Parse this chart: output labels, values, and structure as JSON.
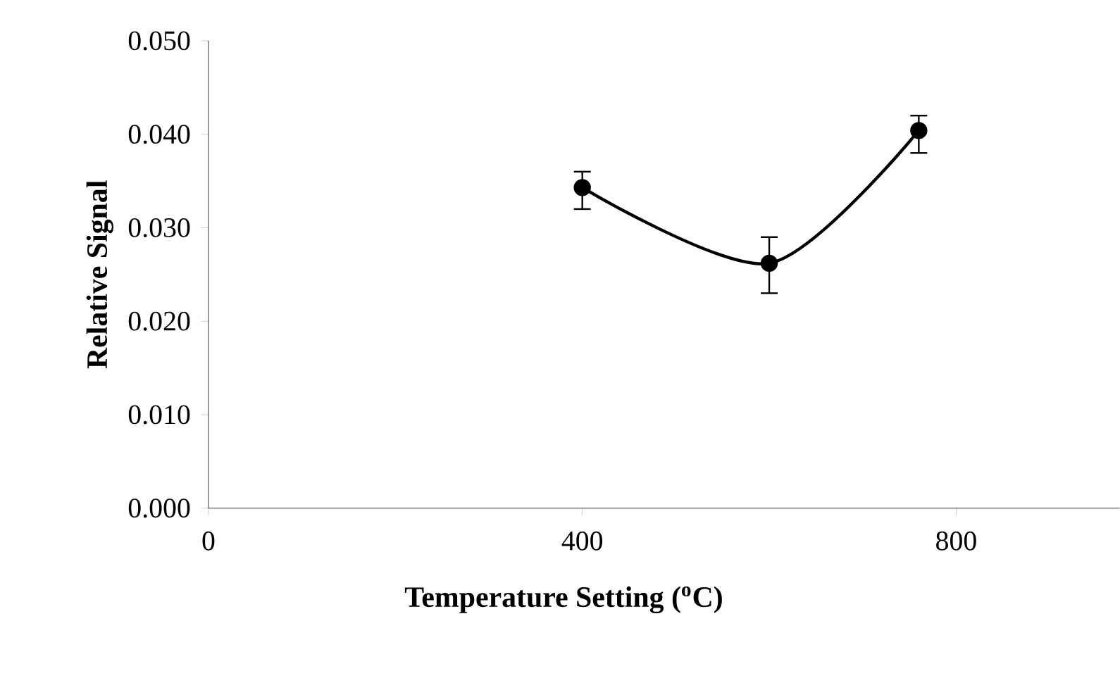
{
  "chart_data": {
    "type": "line",
    "xlabel": "Temperature Setting ($^{o}$C)",
    "ylabel": "Relative Signal",
    "x": [
      400,
      600,
      760
    ],
    "series": [
      {
        "color": "#000000",
        "values": [
          0.0343,
          0.0262,
          0.0404
        ],
        "errors": [
          [
            0.032,
            0.036
          ],
          [
            0.023,
            0.029
          ],
          [
            0.038,
            0.042
          ]
        ]
      }
    ],
    "xlim": [
      0,
      975
    ],
    "xticks": [
      0,
      400,
      800
    ],
    "ylim": [
      0,
      0.05
    ],
    "yticks": [
      {
        "value": 0,
        "label": "0.000"
      },
      {
        "value": 0.01,
        "label": "0.010"
      },
      {
        "value": 0.02,
        "label": "0.020"
      },
      {
        "value": 0.03,
        "label": "0.030"
      },
      {
        "value": 0.04,
        "label": "0.040"
      },
      {
        "value": 0.05,
        "label": "0.050"
      }
    ],
    "marker": "circle",
    "line_style": "solid",
    "grid": false
  }
}
